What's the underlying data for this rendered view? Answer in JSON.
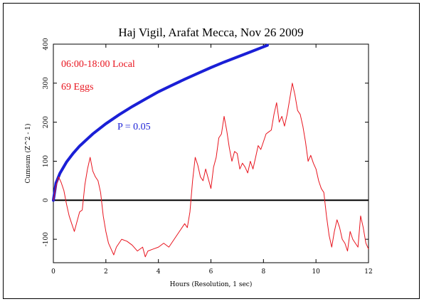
{
  "chart_data": {
    "type": "line",
    "title": "Haj Vigil, Arafat Mecca, Nov 26 2009",
    "xlabel": "Hours (Resolution, 1 sec)",
    "ylabel": "Cumsum (Z^2 - 1)",
    "xlim": [
      0,
      12
    ],
    "ylim": [
      -160,
      400
    ],
    "x_ticks": [
      0,
      2,
      4,
      6,
      8,
      10,
      12
    ],
    "y_ticks": [
      -100,
      0,
      100,
      200,
      300,
      400
    ],
    "annotations": {
      "time_range": "06:00-18:00 Local",
      "eggs": "69 Eggs",
      "probability": "P = 0.05"
    },
    "colors": {
      "cumsum": "#e8141e",
      "envelope": "#1a1fd6",
      "zero_line": "#000000"
    },
    "series": [
      {
        "role": "cumsum",
        "x": [
          0,
          0.1,
          0.2,
          0.3,
          0.4,
          0.5,
          0.6,
          0.7,
          0.8,
          0.9,
          1.0,
          1.1,
          1.2,
          1.3,
          1.4,
          1.5,
          1.6,
          1.7,
          1.8,
          1.9,
          2.0,
          2.1,
          2.2,
          2.3,
          2.4,
          2.6,
          2.8,
          3.0,
          3.2,
          3.4,
          3.5,
          3.6,
          3.8,
          4.0,
          4.2,
          4.4,
          4.6,
          4.8,
          5.0,
          5.1,
          5.2,
          5.3,
          5.4,
          5.5,
          5.6,
          5.7,
          5.8,
          5.9,
          6.0,
          6.1,
          6.2,
          6.3,
          6.4,
          6.5,
          6.6,
          6.7,
          6.8,
          6.9,
          7.0,
          7.1,
          7.2,
          7.3,
          7.4,
          7.5,
          7.6,
          7.7,
          7.8,
          7.9,
          8.0,
          8.1,
          8.2,
          8.3,
          8.4,
          8.5,
          8.6,
          8.7,
          8.8,
          8.9,
          9.0,
          9.1,
          9.2,
          9.3,
          9.4,
          9.5,
          9.6,
          9.7,
          9.8,
          9.9,
          10.0,
          10.1,
          10.2,
          10.3,
          10.4,
          10.5,
          10.6,
          10.7,
          10.8,
          10.9,
          11.0,
          11.1,
          11.2,
          11.3,
          11.4,
          11.5,
          11.6,
          11.7,
          11.8,
          11.9,
          12.0
        ],
        "values": [
          0,
          35,
          60,
          45,
          25,
          -10,
          -40,
          -60,
          -80,
          -55,
          -30,
          -25,
          40,
          80,
          110,
          75,
          60,
          50,
          20,
          -40,
          -80,
          -110,
          -125,
          -140,
          -120,
          -100,
          -105,
          -115,
          -130,
          -120,
          -145,
          -130,
          -125,
          -120,
          -110,
          -120,
          -100,
          -80,
          -60,
          -70,
          -30,
          50,
          110,
          90,
          60,
          50,
          80,
          55,
          30,
          85,
          110,
          160,
          170,
          215,
          180,
          135,
          100,
          125,
          120,
          80,
          95,
          85,
          70,
          100,
          80,
          110,
          140,
          130,
          150,
          170,
          175,
          180,
          220,
          250,
          200,
          215,
          190,
          220,
          260,
          300,
          270,
          230,
          220,
          190,
          150,
          100,
          115,
          95,
          80,
          50,
          30,
          20,
          -40,
          -90,
          -120,
          -80,
          -50,
          -70,
          -100,
          -110,
          -130,
          -80,
          -100,
          -110,
          -120,
          -40,
          -70,
          -110,
          -125
        ]
      },
      {
        "role": "envelope",
        "x": [
          0,
          0.1,
          0.25,
          0.5,
          0.75,
          1.0,
          1.5,
          2.0,
          2.5,
          3.0,
          3.5,
          4.0,
          4.5,
          5.0,
          5.5,
          6.0,
          6.5,
          7.0,
          7.5,
          8.0,
          8.15
        ],
        "values": [
          0,
          44,
          69,
          98,
          120,
          139,
          170,
          196,
          219,
          240,
          259,
          278,
          294,
          310,
          325,
          340,
          354,
          367,
          380,
          393,
          397
        ]
      }
    ],
    "grid": false
  }
}
